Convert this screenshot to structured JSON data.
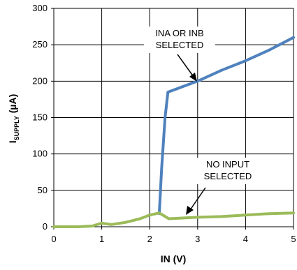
{
  "chart_data": {
    "type": "line",
    "title": "",
    "xlabel": "IN (V)",
    "ylabel": {
      "main": "I",
      "sub": "SUPPLY",
      "unit": " (µA)"
    },
    "xlim": [
      0,
      5
    ],
    "ylim": [
      0,
      300
    ],
    "xticks": [
      "0",
      "1",
      "2",
      "3",
      "4",
      "5"
    ],
    "yticks": [
      "0",
      "50",
      "100",
      "150",
      "200",
      "250",
      "300"
    ],
    "grid": true,
    "legend": "none",
    "series": [
      {
        "color": "#4f81bd",
        "x": [
          2.2,
          2.25,
          2.32,
          2.38,
          3.0,
          3.5,
          4.0,
          4.5,
          5.0
        ],
        "y": [
          18,
          80,
          150,
          185,
          200,
          215,
          228,
          243,
          260
        ]
      },
      {
        "color": "#9bbb59",
        "x": [
          0,
          0.5,
          0.8,
          1.0,
          1.2,
          1.5,
          1.8,
          2.0,
          2.2,
          2.4,
          3.0,
          3.5,
          4.0,
          4.5,
          5.0
        ],
        "y": [
          0,
          0,
          1,
          5,
          3,
          6,
          11,
          16,
          19,
          11,
          13,
          14,
          16,
          18,
          19
        ]
      }
    ],
    "annotations": [
      {
        "lines": [
          "INA OR INB",
          "SELECTED"
        ]
      },
      {
        "lines": [
          "NO INPUT",
          "SELECTED"
        ]
      }
    ]
  }
}
